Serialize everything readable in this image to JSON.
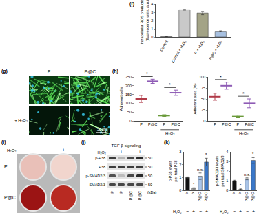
{
  "panel_labels": {
    "f": "(f)",
    "g": "(g)",
    "h": "(h)",
    "i": "(i)",
    "j": "(j)",
    "k": "(k)"
  },
  "chart_data": [
    {
      "type": "bar",
      "y_label": [
        "Intracellular ROS production",
        "(fluorescence units, a.u.)"
      ],
      "categories": [
        "Control",
        "Control + H₂O₂",
        "P + H₂O₂",
        "P@C + H₂O₂"
      ],
      "values": [
        0.05,
        3.3,
        2.9,
        0.7
      ],
      "errors": [
        0.02,
        0.05,
        0.2,
        0.05
      ],
      "colors": [
        "#d0d0d0",
        "#c9c9c9",
        "#a3a386",
        "#a7c0e0"
      ],
      "ylim": [
        0,
        4
      ],
      "yticks": [
        0,
        1,
        2,
        3,
        4
      ],
      "grid": false
    },
    {
      "type": "scatter",
      "marker": "line-ew",
      "y_label": [
        "Adherent cells"
      ],
      "categories": [
        "P",
        "P@C",
        "P",
        "P@C"
      ],
      "values": [
        125,
        225,
        30,
        160
      ],
      "errors": [
        20,
        12,
        5,
        15
      ],
      "colors": [
        "#b03a48",
        "#8e5bb5",
        "#6a9a3a",
        "#8e5bb5"
      ],
      "ylim": [
        0,
        250
      ],
      "yticks": [
        0,
        50,
        100,
        150,
        200,
        250
      ],
      "grid": false,
      "annotations": [
        {
          "text": "*",
          "x": [
            0,
            1
          ]
        },
        {
          "text": "*",
          "x": [
            2,
            3
          ]
        }
      ],
      "x_group": {
        "text": "H₂O₂",
        "x": [
          2,
          3
        ]
      }
    },
    {
      "type": "scatter",
      "marker": "line-ew",
      "y_label": [
        "Adherent area (%)"
      ],
      "categories": [
        "P",
        "P@C",
        "P",
        "P@C"
      ],
      "values": [
        55,
        80,
        10,
        40
      ],
      "errors": [
        8,
        8,
        3,
        10
      ],
      "colors": [
        "#b03a48",
        "#8e5bb5",
        "#6a9a3a",
        "#8e5bb5"
      ],
      "ylim": [
        0,
        100
      ],
      "yticks": [
        0,
        25,
        50,
        75,
        100
      ],
      "grid": false,
      "annotations": [
        {
          "text": "*",
          "x": [
            0,
            1
          ]
        },
        {
          "text": "*",
          "x": [
            2,
            3
          ]
        }
      ],
      "x_group": {
        "text": "H₂O₂",
        "x": [
          2,
          3
        ]
      }
    },
    {
      "type": "bar",
      "y_label": [
        "p-P38 levels",
        "per total P38"
      ],
      "categories": [
        "P",
        "P",
        "P@C",
        "P@C"
      ],
      "values": [
        1.0,
        0.15,
        1.1,
        2.2
      ],
      "errors": [
        0.05,
        0.05,
        0.25,
        0.3
      ],
      "colors": [
        "#111111",
        "#cccccc",
        "#a9c4e8",
        "#3b78c9"
      ],
      "ylim": [
        0,
        3
      ],
      "yticks": [
        0,
        1,
        2,
        3
      ],
      "grid": false,
      "annotations": [
        {
          "text": "*",
          "x": 1
        },
        {
          "text": "n.s.",
          "x": 2
        },
        {
          "text": "*",
          "x": 3
        }
      ],
      "treatment": {
        "label": "H₂O₂",
        "values": [
          "−",
          "+",
          "−",
          "+"
        ]
      }
    },
    {
      "type": "bar",
      "y_label": [
        "p-SMAD2/3 levels",
        "per total SMAD2/3"
      ],
      "categories": [
        "P",
        "P",
        "P@C",
        "P@C"
      ],
      "values": [
        1.0,
        0.1,
        1.2,
        3.1
      ],
      "errors": [
        0.05,
        0.05,
        0.1,
        0.3
      ],
      "colors": [
        "#111111",
        "#cccccc",
        "#a9c4e8",
        "#3b78c9"
      ],
      "ylim": [
        0,
        4
      ],
      "yticks": [
        0,
        1,
        2,
        3,
        4
      ],
      "grid": false,
      "annotations": [
        {
          "text": "*",
          "x": 1
        },
        {
          "text": "n.s.",
          "x": 2
        },
        {
          "text": "*",
          "x": 3
        }
      ],
      "treatment": {
        "label": "H₂O₂",
        "values": [
          "−",
          "+",
          "−",
          "+"
        ]
      }
    }
  ],
  "images_g": {
    "columns": [
      "P",
      "P@C"
    ],
    "row_label": "+ H₂O₂",
    "scale_bar": "50 μm"
  },
  "plate_i": {
    "treatment": "H₂O₂",
    "conditions": [
      "−",
      "+"
    ],
    "rows": [
      "P",
      "P@C"
    ]
  },
  "blot_j": {
    "title": "TGF-β signaling",
    "treatment": "H₂O₂",
    "conditions": [
      "−",
      "+",
      "−",
      "+"
    ],
    "lanes": [
      "P",
      "P",
      "P@C",
      "P@C"
    ],
    "bands": [
      "p-P38",
      "P38",
      "p-SMAD2/3",
      "SMAD2/3"
    ],
    "markers": [
      50,
      50,
      50,
      50
    ],
    "unit": "(kDa)"
  }
}
